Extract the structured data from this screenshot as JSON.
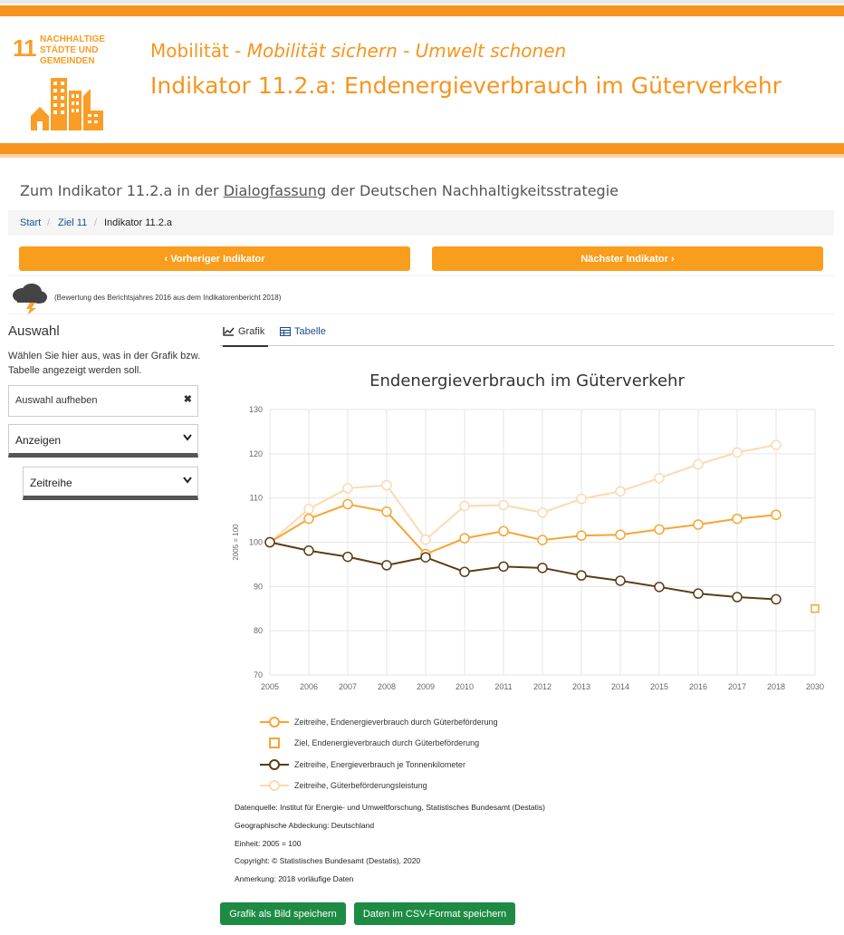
{
  "header": {
    "logo_number": "11",
    "logo_text": "NACHHALTIGE STÄDTE UND GEMEINDEN",
    "subtitle_main": "Mobilität - ",
    "subtitle_italic": "Mobilität sichern - Umwelt schonen",
    "title": "Indikator 11.2.a: Endenergieverbrauch im Güterverkehr"
  },
  "intro": {
    "before": "Zum Indikator 11.2.a in der ",
    "link": "Dialogfassung",
    "after": " der Deutschen Nachhaltigkeitsstrategie"
  },
  "breadcrumb": [
    "Start",
    "Ziel 11",
    "Indikator 11.2.a"
  ],
  "nav": {
    "prev": "Vorheriger Indikator",
    "next": "Nächster Indikator"
  },
  "assessment": {
    "icon": "thunderstorm-cloud-icon",
    "text": "(Bewertung des Berichtsjahres 2016 aus dem Indikatorenbericht 2018)"
  },
  "sidebar": {
    "title": "Auswahl",
    "description": "Wählen Sie hier aus, was in der Grafik bzw. Tabelle angezeigt werden soll.",
    "clear_label": "Auswahl aufheben",
    "select_show": "Anzeigen",
    "select_series": "Zeitreihe"
  },
  "tabs": {
    "chart": "Grafik",
    "table": "Tabelle"
  },
  "chart_data": {
    "type": "line",
    "title": "Endenergieverbrauch im Güterverkehr",
    "ylabel": "2005 = 100",
    "ylim": [
      70,
      130
    ],
    "yticks": [
      70,
      80,
      90,
      100,
      110,
      120,
      130
    ],
    "categories": [
      "2005",
      "2006",
      "2007",
      "2008",
      "2009",
      "2010",
      "2011",
      "2012",
      "2013",
      "2014",
      "2015",
      "2016",
      "2017",
      "2018",
      "2030"
    ],
    "grid": true,
    "legend_placement": "bottom",
    "series": [
      {
        "name": "Zeitreihe, Endenergieverbrauch durch Güterbeförderung",
        "color": "#f7a533",
        "marker": "circle",
        "values": [
          100,
          105.3,
          108.6,
          106.9,
          97.3,
          100.9,
          102.5,
          100.5,
          101.5,
          101.7,
          102.9,
          104.0,
          105.3,
          106.2,
          null
        ]
      },
      {
        "name": "Ziel, Endenergieverbrauch durch Güterbeförderung",
        "color": "#f7a533",
        "marker": "square",
        "values": [
          null,
          null,
          null,
          null,
          null,
          null,
          null,
          null,
          null,
          null,
          null,
          null,
          null,
          null,
          85
        ]
      },
      {
        "name": "Zeitreihe, Energieverbrauch je Tonnenkilometer",
        "color": "#5b3d14",
        "marker": "circle",
        "values": [
          100,
          98.1,
          96.7,
          94.8,
          96.6,
          93.3,
          94.5,
          94.2,
          92.5,
          91.3,
          89.9,
          88.4,
          87.6,
          87.1,
          null
        ]
      },
      {
        "name": "Zeitreihe, Güterbeförderungsleistung",
        "color": "#fdd9b0",
        "marker": "circle",
        "values": [
          100,
          107.5,
          112.2,
          112.9,
          100.6,
          108.2,
          108.4,
          106.7,
          109.8,
          111.5,
          114.5,
          117.6,
          120.3,
          122.0,
          null
        ]
      }
    ]
  },
  "meta": {
    "source": "Datenquelle: Institut für Energie- und Umweltforschung, Statistisches Bundesamt (Destatis)",
    "coverage": "Geographische Abdeckung: Deutschland",
    "unit": "Einheit: 2005 = 100",
    "copyright": "Copyright: © Statistisches Bundesamt (Destatis), 2020",
    "note": "Anmerkung: 2018 vorläufige Daten"
  },
  "buttons": {
    "save_image": "Grafik als Bild speichern",
    "save_csv": "Daten im CSV-Format speichern"
  },
  "colors": {
    "accent": "#f7941d",
    "button": "#f99d1c",
    "green": "#1e8b44"
  }
}
